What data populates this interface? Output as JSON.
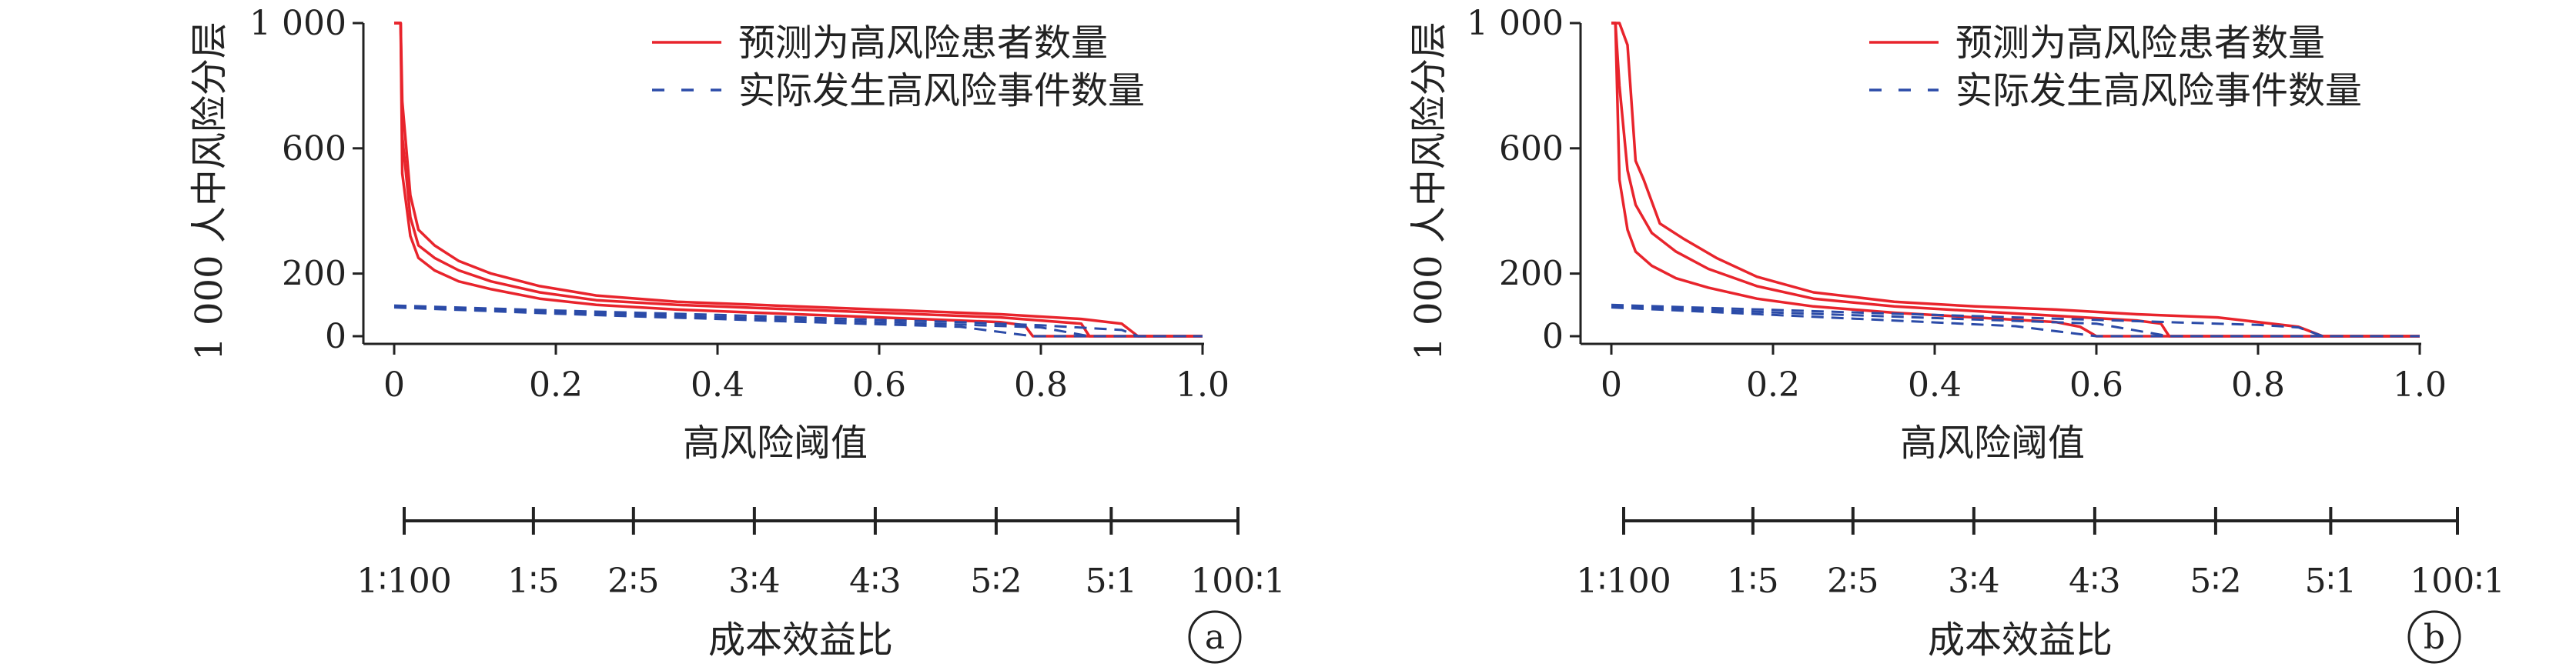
{
  "colors": {
    "predicted": "#e8242c",
    "actual": "#2b4ba8",
    "axis": "#222222"
  },
  "chart_data": [
    {
      "type": "line",
      "panel_label": "a",
      "xlabel": "高风险阈值",
      "ylabel": "1 000 人中风险分层",
      "xlim": [
        0,
        1
      ],
      "ylim": [
        0,
        1000
      ],
      "x_ticks": [
        "0",
        "0.2",
        "0.4",
        "0.6",
        "0.8",
        "1.0"
      ],
      "y_ticks": [
        "0",
        "200",
        "600",
        "1 000"
      ],
      "cost_benefit_label": "成本效益比",
      "cost_benefit_ticks": [
        "1∶100",
        "1∶5",
        "2∶5",
        "3∶4",
        "4∶3",
        "5∶2",
        "5∶1",
        "100∶1"
      ],
      "legend": [
        {
          "label": "预测为高风险患者数量",
          "style": "solid"
        },
        {
          "label": "实际发生高风险事件数量",
          "style": "dashed"
        }
      ],
      "series": [
        {
          "name": "预测为高风险患者数量",
          "style": "solid",
          "band": "upper",
          "x": [
            0.0,
            0.008,
            0.01,
            0.02,
            0.03,
            0.05,
            0.08,
            0.12,
            0.18,
            0.25,
            0.35,
            0.45,
            0.55,
            0.65,
            0.75,
            0.85,
            0.9,
            0.92,
            1.0
          ],
          "y": [
            1000,
            1000,
            750,
            450,
            340,
            290,
            240,
            200,
            160,
            130,
            110,
            100,
            90,
            80,
            70,
            55,
            40,
            0,
            0
          ]
        },
        {
          "name": "预测为高风险患者数量",
          "style": "solid",
          "band": "middle",
          "x": [
            0.0,
            0.008,
            0.01,
            0.02,
            0.03,
            0.05,
            0.08,
            0.12,
            0.18,
            0.25,
            0.35,
            0.45,
            0.55,
            0.65,
            0.75,
            0.8,
            0.85,
            0.86,
            1.0
          ],
          "y": [
            1000,
            1000,
            640,
            380,
            290,
            250,
            210,
            175,
            140,
            115,
            100,
            90,
            80,
            70,
            60,
            50,
            40,
            0,
            0
          ]
        },
        {
          "name": "预测为高风险患者数量",
          "style": "solid",
          "band": "lower",
          "x": [
            0.0,
            0.008,
            0.01,
            0.02,
            0.03,
            0.05,
            0.08,
            0.12,
            0.18,
            0.25,
            0.35,
            0.45,
            0.55,
            0.65,
            0.75,
            0.78,
            0.79,
            1.0
          ],
          "y": [
            1000,
            1000,
            520,
            320,
            250,
            210,
            175,
            150,
            120,
            100,
            85,
            75,
            65,
            55,
            45,
            35,
            0,
            0
          ]
        },
        {
          "name": "实际发生高风险事件数量",
          "style": "dashed",
          "band": "upper",
          "x": [
            0.0,
            0.1,
            0.2,
            0.3,
            0.4,
            0.5,
            0.6,
            0.7,
            0.8,
            0.9,
            0.92,
            1.0
          ],
          "y": [
            98,
            90,
            82,
            75,
            68,
            60,
            52,
            45,
            35,
            20,
            0,
            0
          ]
        },
        {
          "name": "实际发生高风险事件数量",
          "style": "dashed",
          "band": "middle",
          "x": [
            0.0,
            0.1,
            0.2,
            0.3,
            0.4,
            0.5,
            0.6,
            0.7,
            0.8,
            0.86,
            1.0
          ],
          "y": [
            95,
            86,
            77,
            69,
            61,
            53,
            45,
            37,
            28,
            0,
            0
          ]
        },
        {
          "name": "实际发生高风险事件数量",
          "style": "dashed",
          "band": "lower",
          "x": [
            0.0,
            0.1,
            0.2,
            0.3,
            0.4,
            0.5,
            0.6,
            0.7,
            0.79,
            1.0
          ],
          "y": [
            92,
            82,
            72,
            63,
            55,
            46,
            38,
            30,
            0,
            0
          ]
        }
      ]
    },
    {
      "type": "line",
      "panel_label": "b",
      "xlabel": "高风险阈值",
      "ylabel": "1 000 人中风险分层",
      "xlim": [
        0,
        1
      ],
      "ylim": [
        0,
        1000
      ],
      "x_ticks": [
        "0",
        "0.2",
        "0.4",
        "0.6",
        "0.8",
        "1.0"
      ],
      "y_ticks": [
        "0",
        "200",
        "600",
        "1 000"
      ],
      "cost_benefit_label": "成本效益比",
      "cost_benefit_ticks": [
        "1∶100",
        "1∶5",
        "2∶5",
        "3∶4",
        "4∶3",
        "5∶2",
        "5∶1",
        "100∶1"
      ],
      "legend": [
        {
          "label": "预测为高风险患者数量",
          "style": "solid"
        },
        {
          "label": "实际发生高风险事件数量",
          "style": "dashed"
        }
      ],
      "series": [
        {
          "name": "预测为高风险患者数量",
          "style": "solid",
          "band": "upper",
          "x": [
            0.0,
            0.01,
            0.02,
            0.03,
            0.04,
            0.06,
            0.09,
            0.13,
            0.18,
            0.25,
            0.35,
            0.45,
            0.55,
            0.65,
            0.75,
            0.85,
            0.88,
            1.0
          ],
          "y": [
            1000,
            1000,
            930,
            560,
            500,
            360,
            310,
            250,
            190,
            140,
            110,
            95,
            85,
            70,
            60,
            30,
            0,
            0
          ]
        },
        {
          "name": "预测为高风险患者数量",
          "style": "solid",
          "band": "middle",
          "x": [
            0.0,
            0.005,
            0.01,
            0.02,
            0.03,
            0.05,
            0.08,
            0.12,
            0.18,
            0.25,
            0.35,
            0.45,
            0.55,
            0.65,
            0.68,
            0.69,
            1.0
          ],
          "y": [
            1000,
            1000,
            800,
            530,
            420,
            330,
            270,
            215,
            160,
            120,
            95,
            80,
            65,
            50,
            40,
            0,
            0
          ]
        },
        {
          "name": "预测为高风险患者数量",
          "style": "solid",
          "band": "lower",
          "x": [
            0.0,
            0.005,
            0.01,
            0.02,
            0.03,
            0.05,
            0.08,
            0.12,
            0.18,
            0.25,
            0.35,
            0.45,
            0.55,
            0.58,
            0.6,
            1.0
          ],
          "y": [
            1000,
            1000,
            500,
            340,
            270,
            225,
            185,
            155,
            120,
            95,
            75,
            60,
            45,
            30,
            0,
            0
          ]
        },
        {
          "name": "实际发生高风险事件数量",
          "style": "dashed",
          "band": "upper",
          "x": [
            0.0,
            0.1,
            0.2,
            0.3,
            0.4,
            0.5,
            0.6,
            0.7,
            0.8,
            0.85,
            0.88,
            1.0
          ],
          "y": [
            100,
            92,
            84,
            76,
            68,
            60,
            52,
            44,
            36,
            28,
            0,
            0
          ]
        },
        {
          "name": "实际发生高风险事件数量",
          "style": "dashed",
          "band": "middle",
          "x": [
            0.0,
            0.1,
            0.2,
            0.3,
            0.4,
            0.5,
            0.6,
            0.69,
            1.0
          ],
          "y": [
            96,
            86,
            76,
            67,
            58,
            49,
            40,
            0,
            0
          ]
        },
        {
          "name": "实际发生高风险事件数量",
          "style": "dashed",
          "band": "lower",
          "x": [
            0.0,
            0.1,
            0.2,
            0.3,
            0.4,
            0.5,
            0.6,
            1.0
          ],
          "y": [
            92,
            80,
            68,
            56,
            44,
            32,
            0,
            0
          ]
        }
      ]
    }
  ]
}
